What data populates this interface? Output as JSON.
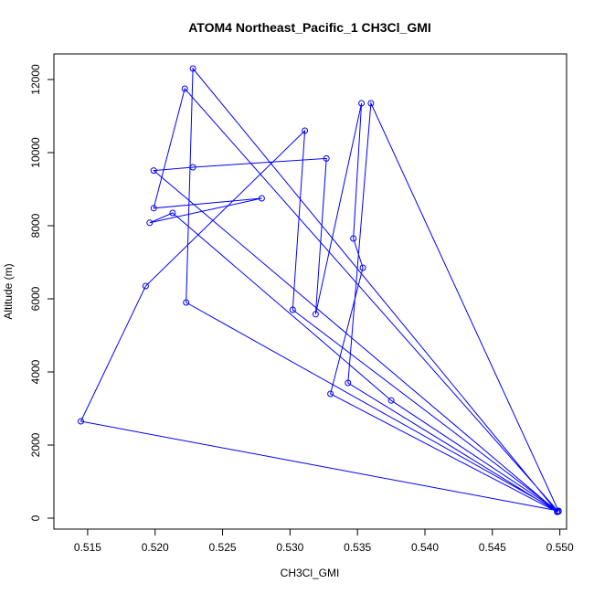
{
  "chart_data": {
    "type": "line",
    "title": "ATOM4 Northeast_Pacific_1 CH3Cl_GMI",
    "xlabel": "CH3Cl_GMI",
    "ylabel": "Altitude (m)",
    "xlim": [
      0.5125,
      0.5505
    ],
    "ylim": [
      -300,
      12700
    ],
    "xticks": [
      0.515,
      0.52,
      0.525,
      0.53,
      0.535,
      0.54,
      0.545,
      0.55
    ],
    "xtick_labels": [
      "0.515",
      "0.520",
      "0.525",
      "0.530",
      "0.535",
      "0.540",
      "0.545",
      "0.550"
    ],
    "yticks": [
      0,
      2000,
      4000,
      6000,
      8000,
      10000,
      12000
    ],
    "ytick_labels": [
      "0",
      "2000",
      "4000",
      "6000",
      "8000",
      "10000",
      "12000"
    ],
    "color": "#0000ff",
    "grid": false,
    "series": [
      {
        "x": [
          0.5499,
          0.5145,
          0.5193,
          0.5311,
          0.5302,
          0.5499,
          0.5222,
          0.5199,
          0.5279,
          0.5196,
          0.5213,
          0.5375,
          0.5499,
          0.5223,
          0.5228,
          0.5498,
          0.533,
          0.5354,
          0.5347,
          0.5353,
          0.5319,
          0.5327,
          0.5228,
          0.5199,
          0.5498,
          0.5343,
          0.536,
          0.5499
        ],
        "y": [
          200,
          2650,
          6350,
          10600,
          5700,
          180,
          11750,
          8480,
          8750,
          8080,
          8350,
          3220,
          190,
          5900,
          12300,
          170,
          3400,
          6850,
          7650,
          11350,
          5580,
          9840,
          9600,
          9510,
          180,
          3700,
          11350,
          200
        ]
      }
    ]
  }
}
